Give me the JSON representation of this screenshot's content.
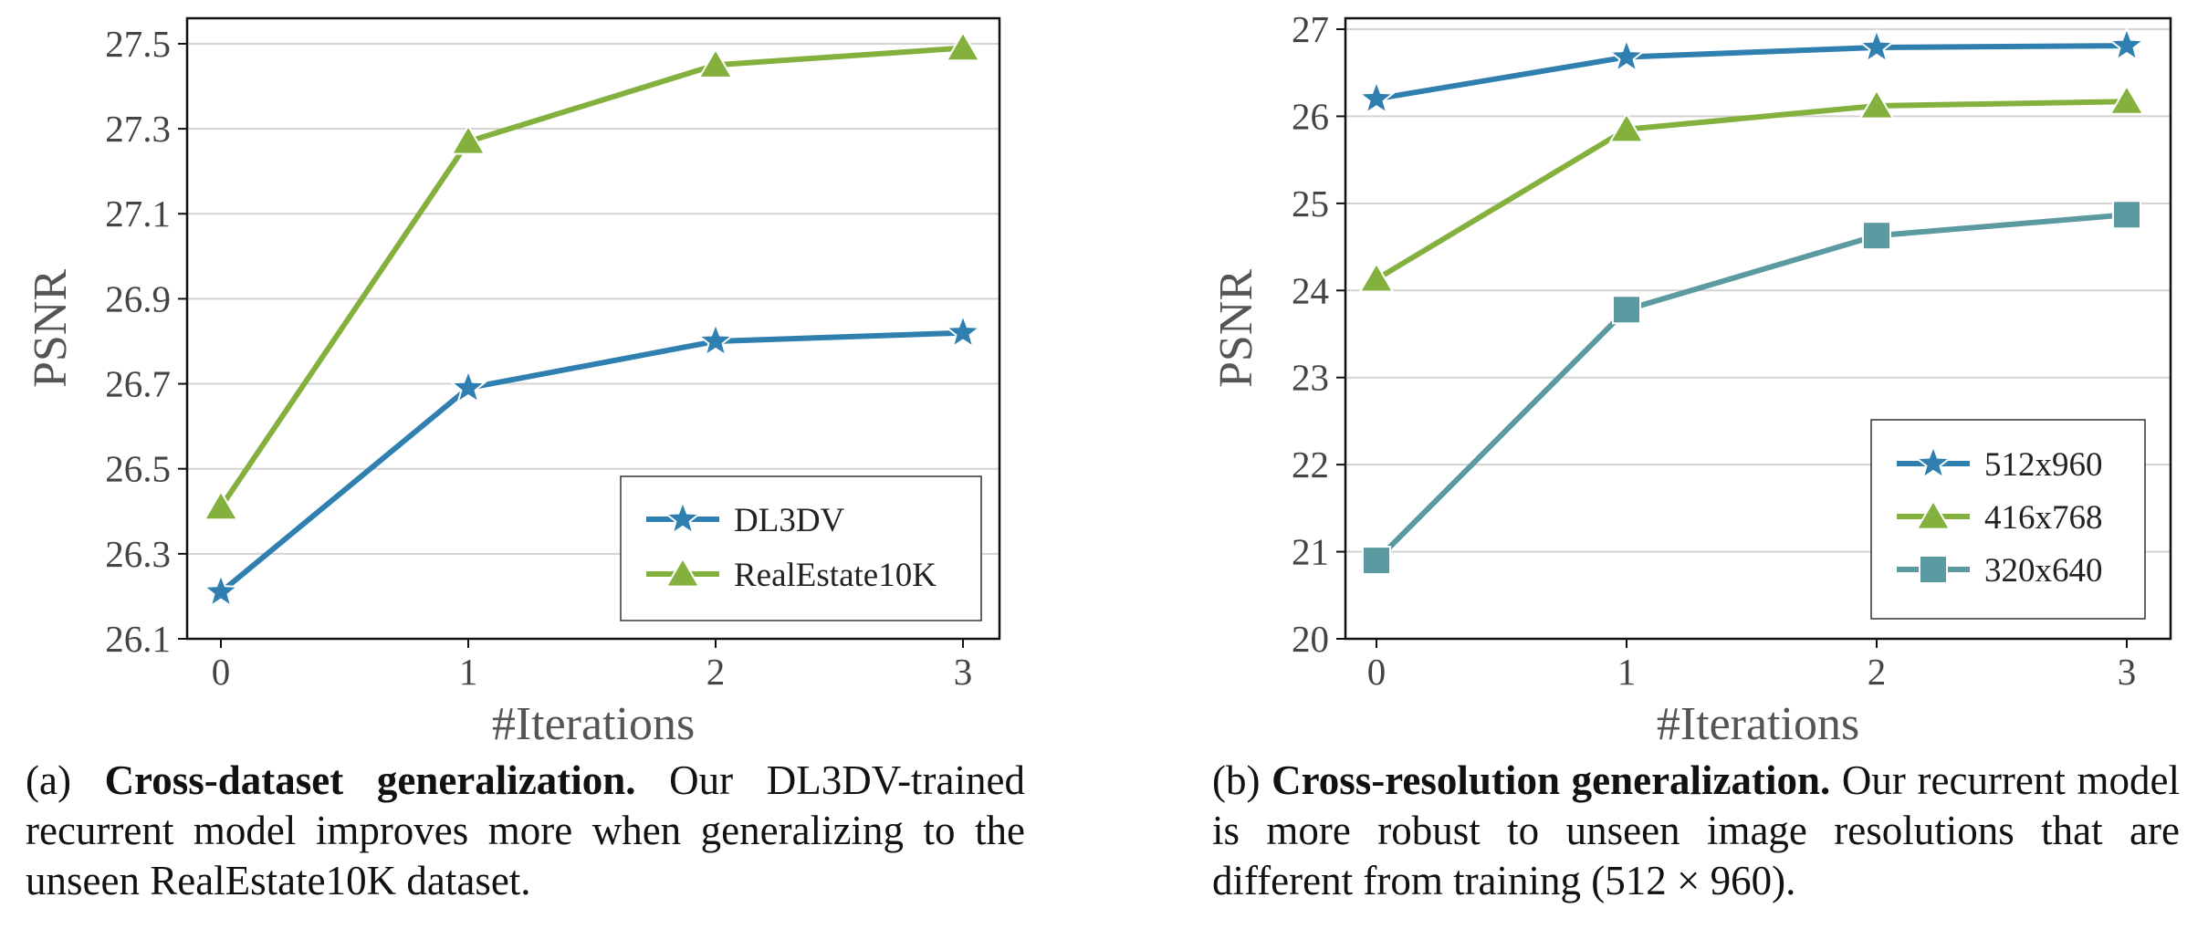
{
  "chart_data": [
    {
      "type": "line",
      "xlabel": "#Iterations",
      "ylabel": "PSNR",
      "x": [
        0,
        1,
        2,
        3
      ],
      "xticks": [
        "0",
        "1",
        "2",
        "3"
      ],
      "ylim": [
        26.1,
        27.56
      ],
      "yticks": [
        "26.1",
        "26.3",
        "26.5",
        "26.7",
        "26.9",
        "27.1",
        "27.3",
        "27.5"
      ],
      "grid": "horizontal",
      "legend_position": "lower-right",
      "series": [
        {
          "name": "DL3DV",
          "values": [
            26.21,
            26.69,
            26.8,
            26.82
          ],
          "color": "#2f7fb0",
          "marker": "star"
        },
        {
          "name": "RealEstate10K",
          "values": [
            26.41,
            27.27,
            27.45,
            27.49
          ],
          "color": "#84b03e",
          "marker": "triangle"
        }
      ]
    },
    {
      "type": "line",
      "xlabel": "#Iterations",
      "ylabel": "PSNR",
      "x": [
        0,
        1,
        2,
        3
      ],
      "xticks": [
        "0",
        "1",
        "2",
        "3"
      ],
      "ylim": [
        20,
        27
      ],
      "yticks": [
        "20",
        "21",
        "22",
        "23",
        "24",
        "25",
        "26",
        "27"
      ],
      "grid": "horizontal",
      "legend_position": "lower-right",
      "series": [
        {
          "name": "512x960",
          "values": [
            26.2,
            26.68,
            26.79,
            26.81
          ],
          "color": "#2f7fb0",
          "marker": "star"
        },
        {
          "name": "416x768",
          "values": [
            24.13,
            25.85,
            26.12,
            26.17
          ],
          "color": "#84b03e",
          "marker": "triangle"
        },
        {
          "name": "320x640",
          "values": [
            20.9,
            23.78,
            24.63,
            24.87
          ],
          "color": "#5b9aa0",
          "marker": "square"
        }
      ]
    }
  ],
  "captions": {
    "a": {
      "prefix": "(a) ",
      "bold": "Cross-dataset generalization.",
      "text": " Our DL3DV-trained recurrent model improves more when generalizing to the unseen RealEstate10K dataset."
    },
    "b": {
      "prefix": "(b) ",
      "bold": "Cross-resolution generalization.",
      "text": " Our recurrent model is more robust to unseen image resolutions that are different from training (512 × 960)."
    }
  }
}
